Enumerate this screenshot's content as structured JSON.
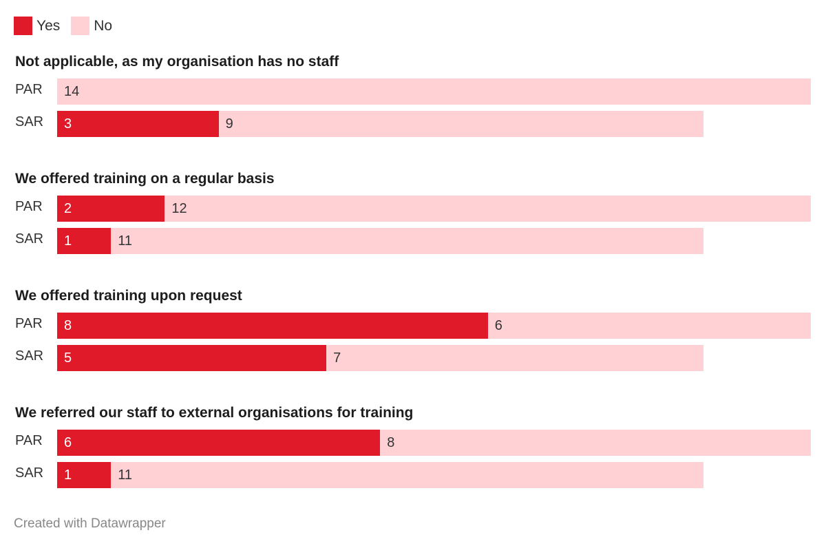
{
  "chart_data": {
    "type": "bar",
    "orientation": "horizontal",
    "stacked": true,
    "legend": [
      {
        "name": "Yes",
        "color": "#e01a28"
      },
      {
        "name": "No",
        "color": "#ffd1d5"
      }
    ],
    "legend_placement": "top-left",
    "xlim": [
      0,
      14
    ],
    "groups": [
      {
        "title": "Not applicable, as my organisation has no staff",
        "rows": [
          {
            "label": "PAR",
            "yes": 0,
            "no": 14
          },
          {
            "label": "SAR",
            "yes": 3,
            "no": 9
          }
        ]
      },
      {
        "title": "We offered training on a regular basis",
        "rows": [
          {
            "label": "PAR",
            "yes": 2,
            "no": 12
          },
          {
            "label": "SAR",
            "yes": 1,
            "no": 11
          }
        ]
      },
      {
        "title": "We offered training upon request",
        "rows": [
          {
            "label": "PAR",
            "yes": 8,
            "no": 6
          },
          {
            "label": "SAR",
            "yes": 5,
            "no": 7
          }
        ]
      },
      {
        "title": "We referred our staff to external organisations for training",
        "rows": [
          {
            "label": "PAR",
            "yes": 6,
            "no": 8
          },
          {
            "label": "SAR",
            "yes": 1,
            "no": 11
          }
        ]
      }
    ]
  },
  "footer": "Created with Datawrapper"
}
